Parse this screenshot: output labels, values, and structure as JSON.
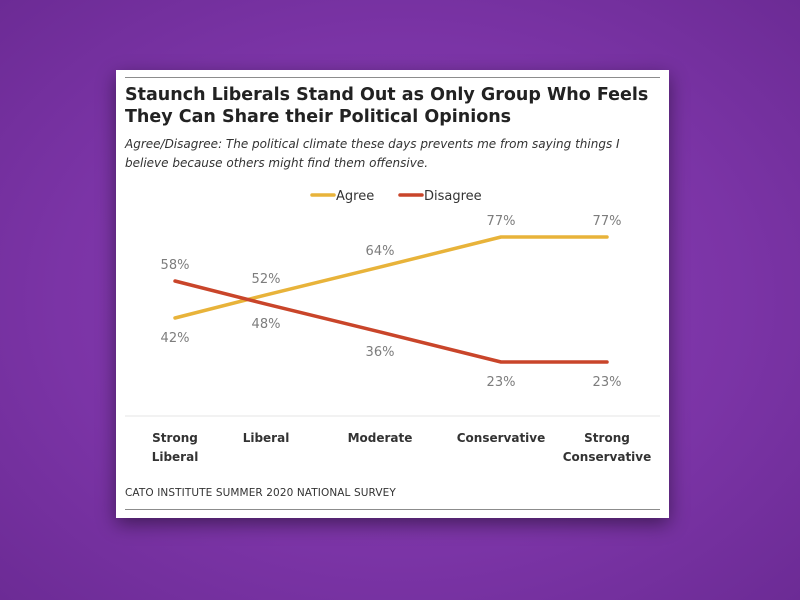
{
  "colors": {
    "agree": "#e8b33a",
    "disagree": "#c9452a",
    "background": "#7b34a6",
    "label_gray": "#7d7d7d"
  },
  "chart_data": {
    "type": "line",
    "title": "Staunch Liberals Stand Out as Only Group Who Feels They Can Share their Political Opinions",
    "subtitle": "Agree/Disagree: The political climate these days prevents me from saying things I believe because others might find them offensive.",
    "categories": [
      [
        "Strong",
        "Liberal"
      ],
      [
        "Liberal"
      ],
      [
        "Moderate"
      ],
      [
        "Conservative"
      ],
      [
        "Strong",
        "Conservative"
      ]
    ],
    "series": [
      {
        "name": "Agree",
        "values": [
          42,
          52,
          64,
          77,
          77
        ],
        "labels": [
          "42%",
          "52%",
          "64%",
          "77%",
          "77%"
        ]
      },
      {
        "name": "Disagree",
        "values": [
          58,
          48,
          36,
          23,
          23
        ],
        "labels": [
          "58%",
          "48%",
          "36%",
          "23%",
          "23%"
        ]
      }
    ],
    "legend_position": "top-center",
    "grid": false,
    "source": "CATO INSTITUTE SUMMER 2020 NATIONAL SURVEY"
  }
}
